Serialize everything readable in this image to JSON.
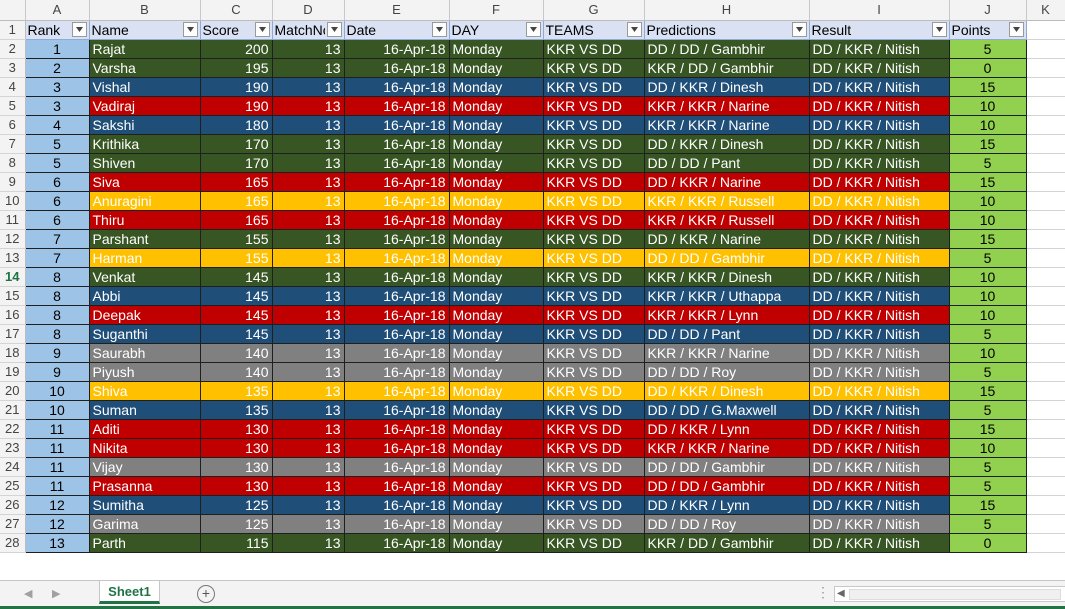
{
  "col_letters": [
    "A",
    "B",
    "C",
    "D",
    "E",
    "F",
    "G",
    "H",
    "I",
    "J",
    "K"
  ],
  "headers": [
    "Rank",
    "Name",
    "Score",
    "MatchNo",
    "Date",
    "DAY",
    "TEAMS",
    "Predictions",
    "Result",
    "Points"
  ],
  "selected_row": 14,
  "row_colors": {
    "green": "#375623",
    "blue": "#1f4e79",
    "red": "#c00000",
    "gold": "#ffc000",
    "gray": "#808080"
  },
  "rank_color": "#9dc3e6",
  "points_color": "#92d050",
  "rows": [
    {
      "row": "2",
      "rank": "1",
      "name": "Rajat",
      "score": "200",
      "matchno": "13",
      "date": "16-Apr-18",
      "day": "Monday",
      "teams": "KKR VS DD",
      "predictions": "DD / DD / Gambhir",
      "result": "DD / KKR / Nitish",
      "points": "5",
      "color": "green"
    },
    {
      "row": "3",
      "rank": "2",
      "name": "Varsha",
      "score": "195",
      "matchno": "13",
      "date": "16-Apr-18",
      "day": "Monday",
      "teams": "KKR VS DD",
      "predictions": "KKR / DD / Gambhir",
      "result": "DD / KKR / Nitish",
      "points": "0",
      "color": "green"
    },
    {
      "row": "4",
      "rank": "3",
      "name": "Vishal",
      "score": "190",
      "matchno": "13",
      "date": "16-Apr-18",
      "day": "Monday",
      "teams": "KKR VS DD",
      "predictions": "DD / KKR / Dinesh",
      "result": "DD / KKR / Nitish",
      "points": "15",
      "color": "blue"
    },
    {
      "row": "5",
      "rank": "3",
      "name": "Vadiraj",
      "score": "190",
      "matchno": "13",
      "date": "16-Apr-18",
      "day": "Monday",
      "teams": "KKR VS DD",
      "predictions": "KKR / KKR / Narine",
      "result": "DD / KKR / Nitish",
      "points": "10",
      "color": "red"
    },
    {
      "row": "6",
      "rank": "4",
      "name": "Sakshi",
      "score": "180",
      "matchno": "13",
      "date": "16-Apr-18",
      "day": "Monday",
      "teams": "KKR VS DD",
      "predictions": "KKR / KKR / Narine",
      "result": "DD / KKR / Nitish",
      "points": "10",
      "color": "blue"
    },
    {
      "row": "7",
      "rank": "5",
      "name": "Krithika",
      "score": "170",
      "matchno": "13",
      "date": "16-Apr-18",
      "day": "Monday",
      "teams": "KKR VS DD",
      "predictions": "DD / KKR / Dinesh",
      "result": "DD / KKR / Nitish",
      "points": "15",
      "color": "green"
    },
    {
      "row": "8",
      "rank": "5",
      "name": "Shiven",
      "score": "170",
      "matchno": "13",
      "date": "16-Apr-18",
      "day": "Monday",
      "teams": "KKR VS DD",
      "predictions": "DD / DD / Pant",
      "result": "DD / KKR / Nitish",
      "points": "5",
      "color": "green"
    },
    {
      "row": "9",
      "rank": "6",
      "name": "Siva",
      "score": "165",
      "matchno": "13",
      "date": "16-Apr-18",
      "day": "Monday",
      "teams": "KKR VS DD",
      "predictions": "DD / KKR / Narine",
      "result": "DD / KKR / Nitish",
      "points": "15",
      "color": "red"
    },
    {
      "row": "10",
      "rank": "6",
      "name": "Anuragini",
      "score": "165",
      "matchno": "13",
      "date": "16-Apr-18",
      "day": "Monday",
      "teams": "KKR VS DD",
      "predictions": "KKR / KKR / Russell",
      "result": "DD / KKR / Nitish",
      "points": "10",
      "color": "gold"
    },
    {
      "row": "11",
      "rank": "6",
      "name": "Thiru",
      "score": "165",
      "matchno": "13",
      "date": "16-Apr-18",
      "day": "Monday",
      "teams": "KKR VS DD",
      "predictions": "KKR / KKR / Russell",
      "result": "DD / KKR / Nitish",
      "points": "10",
      "color": "red"
    },
    {
      "row": "12",
      "rank": "7",
      "name": "Parshant",
      "score": "155",
      "matchno": "13",
      "date": "16-Apr-18",
      "day": "Monday",
      "teams": "KKR VS DD",
      "predictions": "DD / KKR / Narine",
      "result": "DD / KKR / Nitish",
      "points": "15",
      "color": "green"
    },
    {
      "row": "13",
      "rank": "7",
      "name": "Harman",
      "score": "155",
      "matchno": "13",
      "date": "16-Apr-18",
      "day": "Monday",
      "teams": "KKR VS DD",
      "predictions": "DD / DD / Gambhir",
      "result": "DD / KKR / Nitish",
      "points": "5",
      "color": "gold"
    },
    {
      "row": "14",
      "rank": "8",
      "name": "Venkat",
      "score": "145",
      "matchno": "13",
      "date": "16-Apr-18",
      "day": "Monday",
      "teams": "KKR VS DD",
      "predictions": "KKR / KKR / Dinesh",
      "result": "DD / KKR / Nitish",
      "points": "10",
      "color": "green"
    },
    {
      "row": "15",
      "rank": "8",
      "name": "Abbi",
      "score": "145",
      "matchno": "13",
      "date": "16-Apr-18",
      "day": "Monday",
      "teams": "KKR VS DD",
      "predictions": "KKR / KKR / Uthappa",
      "result": "DD / KKR / Nitish",
      "points": "10",
      "color": "blue"
    },
    {
      "row": "16",
      "rank": "8",
      "name": "Deepak",
      "score": "145",
      "matchno": "13",
      "date": "16-Apr-18",
      "day": "Monday",
      "teams": "KKR VS DD",
      "predictions": "KKR / KKR / Lynn",
      "result": "DD / KKR / Nitish",
      "points": "10",
      "color": "red"
    },
    {
      "row": "17",
      "rank": "8",
      "name": "Suganthi",
      "score": "145",
      "matchno": "13",
      "date": "16-Apr-18",
      "day": "Monday",
      "teams": "KKR VS DD",
      "predictions": "DD / DD / Pant",
      "result": "DD / KKR / Nitish",
      "points": "5",
      "color": "blue"
    },
    {
      "row": "18",
      "rank": "9",
      "name": "Saurabh",
      "score": "140",
      "matchno": "13",
      "date": "16-Apr-18",
      "day": "Monday",
      "teams": "KKR VS DD",
      "predictions": "KKR / KKR / Narine",
      "result": "DD / KKR / Nitish",
      "points": "10",
      "color": "gray"
    },
    {
      "row": "19",
      "rank": "9",
      "name": "Piyush",
      "score": "140",
      "matchno": "13",
      "date": "16-Apr-18",
      "day": "Monday",
      "teams": "KKR VS DD",
      "predictions": "DD / DD / Roy",
      "result": "DD / KKR / Nitish",
      "points": "5",
      "color": "gray"
    },
    {
      "row": "20",
      "rank": "10",
      "name": "Shiva",
      "score": "135",
      "matchno": "13",
      "date": "16-Apr-18",
      "day": "Monday",
      "teams": "KKR VS DD",
      "predictions": "DD / KKR / Dinesh",
      "result": "DD / KKR / Nitish",
      "points": "15",
      "color": "gold"
    },
    {
      "row": "21",
      "rank": "10",
      "name": "Suman",
      "score": "135",
      "matchno": "13",
      "date": "16-Apr-18",
      "day": "Monday",
      "teams": "KKR VS DD",
      "predictions": "DD / DD / G.Maxwell",
      "result": "DD / KKR / Nitish",
      "points": "5",
      "color": "blue"
    },
    {
      "row": "22",
      "rank": "11",
      "name": "Aditi",
      "score": "130",
      "matchno": "13",
      "date": "16-Apr-18",
      "day": "Monday",
      "teams": "KKR VS DD",
      "predictions": "DD / KKR / Lynn",
      "result": "DD / KKR / Nitish",
      "points": "15",
      "color": "red"
    },
    {
      "row": "23",
      "rank": "11",
      "name": "Nikita",
      "score": "130",
      "matchno": "13",
      "date": "16-Apr-18",
      "day": "Monday",
      "teams": "KKR VS DD",
      "predictions": "KKR / KKR / Narine",
      "result": "DD / KKR / Nitish",
      "points": "10",
      "color": "red"
    },
    {
      "row": "24",
      "rank": "11",
      "name": "Vijay",
      "score": "130",
      "matchno": "13",
      "date": "16-Apr-18",
      "day": "Monday",
      "teams": "KKR VS DD",
      "predictions": "DD / DD / Gambhir",
      "result": "DD / KKR / Nitish",
      "points": "5",
      "color": "gray"
    },
    {
      "row": "25",
      "rank": "11",
      "name": "Prasanna",
      "score": "130",
      "matchno": "13",
      "date": "16-Apr-18",
      "day": "Monday",
      "teams": "KKR VS DD",
      "predictions": "DD / DD / Gambhir",
      "result": "DD / KKR / Nitish",
      "points": "5",
      "color": "red"
    },
    {
      "row": "26",
      "rank": "12",
      "name": "Sumitha",
      "score": "125",
      "matchno": "13",
      "date": "16-Apr-18",
      "day": "Monday",
      "teams": "KKR VS DD",
      "predictions": "DD / KKR / Lynn",
      "result": "DD / KKR / Nitish",
      "points": "15",
      "color": "blue"
    },
    {
      "row": "27",
      "rank": "12",
      "name": "Garima",
      "score": "125",
      "matchno": "13",
      "date": "16-Apr-18",
      "day": "Monday",
      "teams": "KKR VS DD",
      "predictions": "DD / DD / Roy",
      "result": "DD / KKR / Nitish",
      "points": "5",
      "color": "gray"
    },
    {
      "row": "28",
      "rank": "13",
      "name": "Parth",
      "score": "115",
      "matchno": "13",
      "date": "16-Apr-18",
      "day": "Monday",
      "teams": "KKR VS DD",
      "predictions": "KKR / DD / Gambhir",
      "result": "DD / KKR / Nitish",
      "points": "0",
      "color": "green"
    }
  ],
  "sheet_tabs": [
    "Sheet1"
  ],
  "icons": {
    "filter": "filter-dropdown-icon",
    "add_sheet": "plus-circle-icon",
    "scroll_left": "triangle-left-icon",
    "scroll_right": "triangle-right-icon"
  }
}
